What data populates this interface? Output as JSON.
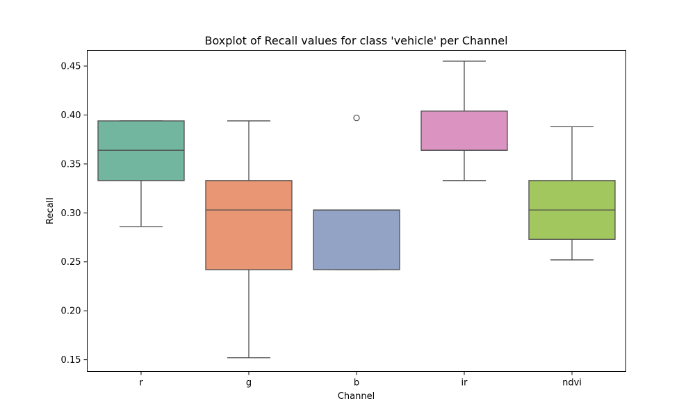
{
  "chart_data": {
    "type": "box",
    "title": "Boxplot of Recall values for class 'vehicle' per Channel",
    "xlabel": "Channel",
    "ylabel": "Recall",
    "ylim": [
      0.138,
      0.466
    ],
    "yticks": [
      "0.15",
      "0.20",
      "0.25",
      "0.30",
      "0.35",
      "0.40",
      "0.45"
    ],
    "grid": false,
    "legend": "none",
    "categories": [
      "r",
      "g",
      "b",
      "ir",
      "ndvi"
    ],
    "boxes": [
      {
        "category": "r",
        "whisker_low": 0.286,
        "q1": 0.333,
        "median": 0.364,
        "q3": 0.394,
        "whisker_high": 0.394,
        "outliers": [],
        "color": "#72b6a0"
      },
      {
        "category": "g",
        "whisker_low": 0.152,
        "q1": 0.242,
        "median": 0.303,
        "q3": 0.333,
        "whisker_high": 0.394,
        "outliers": [],
        "color": "#e99674"
      },
      {
        "category": "b",
        "whisker_low": 0.242,
        "q1": 0.242,
        "median": 0.303,
        "q3": 0.303,
        "whisker_high": 0.303,
        "outliers": [
          0.397
        ],
        "color": "#93a3c5"
      },
      {
        "category": "ir",
        "whisker_low": 0.333,
        "q1": 0.364,
        "median": 0.364,
        "q3": 0.404,
        "whisker_high": 0.455,
        "outliers": [],
        "color": "#db93c1"
      },
      {
        "category": "ndvi",
        "whisker_low": 0.252,
        "q1": 0.273,
        "median": 0.303,
        "q3": 0.333,
        "whisker_high": 0.388,
        "outliers": [],
        "color": "#a1c75e"
      }
    ],
    "line_color": "#4d4d4d"
  }
}
